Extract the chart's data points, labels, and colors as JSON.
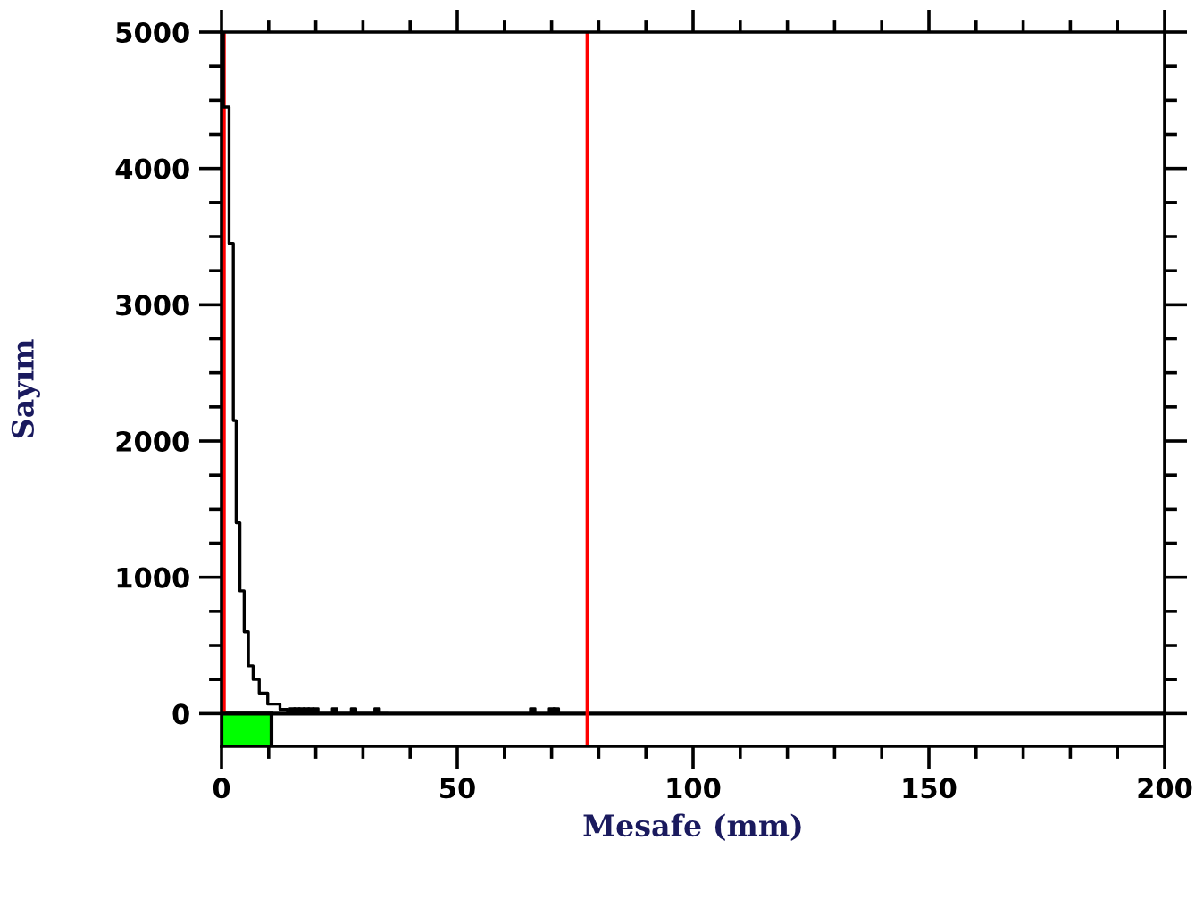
{
  "chart_data": {
    "type": "step",
    "xlabel": "Mesafe (mm)",
    "ylabel": "Sayım",
    "xlim": [
      0,
      200
    ],
    "ylim": [
      -240,
      5000
    ],
    "xticks": [
      0,
      50,
      100,
      150,
      200
    ],
    "yticks": [
      0,
      1000,
      2000,
      3000,
      4000,
      5000
    ],
    "grid": false,
    "legend": false,
    "series": [
      {
        "color": "#000000",
        "x": [
          0.4,
          0.4,
          1.6,
          2.5,
          3.1,
          3.9,
          4.8,
          5.7,
          6.7,
          8,
          9.8,
          12.4,
          14,
          35
        ],
        "values": [
          5000,
          4450,
          3450,
          2150,
          1400,
          900,
          600,
          350,
          250,
          150,
          70,
          30,
          0,
          0
        ]
      },
      {
        "type": "scatter",
        "color": "#000000",
        "marker": "square",
        "x": [
          15,
          16,
          17,
          18,
          19,
          20,
          24,
          28,
          33,
          66,
          70,
          71
        ],
        "values": [
          20,
          20,
          20,
          20,
          20,
          20,
          20,
          20,
          20,
          20,
          20,
          20
        ]
      }
    ],
    "ref_lines": [
      {
        "axis": "y",
        "value": 0,
        "color": "#000000"
      },
      {
        "axis": "x",
        "value": 0.5,
        "color": "#ff0000"
      },
      {
        "axis": "x",
        "value": 77.6,
        "color": "#ff0000"
      }
    ],
    "bands": [
      {
        "axis": "x",
        "from": 0,
        "to": 10.6,
        "color": "#00ff00"
      }
    ]
  }
}
